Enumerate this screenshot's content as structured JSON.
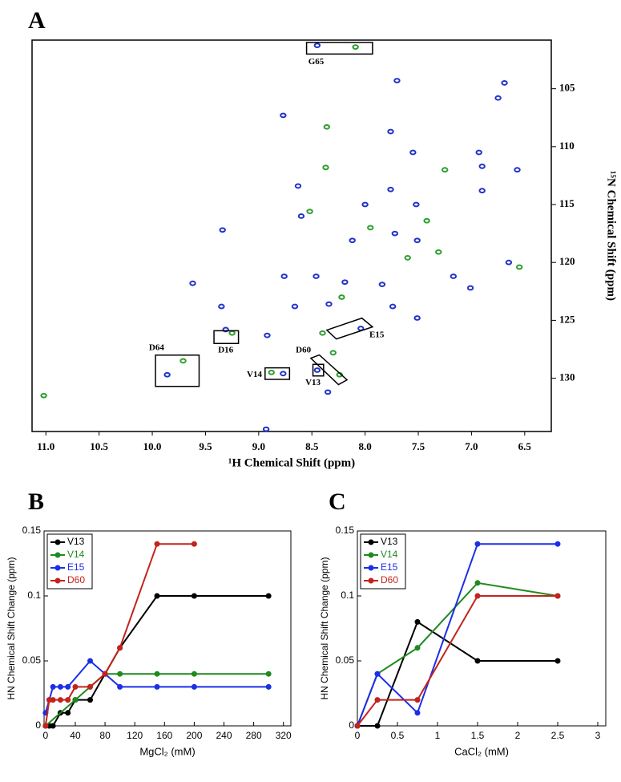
{
  "chart_data": [
    {
      "type": "scatter",
      "panel": "A",
      "xlabel": "¹H Chemical Shift (ppm)",
      "ylabel": "¹⁵N Chemical Shift (ppm)",
      "xlim": [
        11.13,
        6.25
      ],
      "ylim": [
        134.6,
        100.8
      ],
      "xticks": [
        {
          "value": 11.0,
          "label": "11.0"
        },
        10.5,
        {
          "value": 10.0,
          "label": "10.0"
        },
        9.5,
        {
          "value": 9.0,
          "label": "9.0"
        },
        8.5,
        {
          "value": 8.0,
          "label": "8.0"
        },
        7.5,
        {
          "value": 7.0,
          "label": "7.0"
        },
        6.5
      ],
      "yticks": [
        105,
        110,
        115,
        120,
        125,
        130
      ],
      "series": [
        {
          "color": "#2233c8",
          "x": [
            8.45,
            7.7,
            6.69,
            6.75,
            8.77,
            7.76,
            6.93,
            7.55,
            6.9,
            6.57,
            8.63,
            7.76,
            8.0,
            6.9,
            7.52,
            8.6,
            9.34,
            7.72,
            8.12,
            7.51,
            6.65,
            8.76,
            8.46,
            8.19,
            9.62,
            7.84,
            7.17,
            7.01,
            8.66,
            9.35,
            8.34,
            7.74,
            7.51,
            8.04,
            9.31,
            8.92,
            9.86,
            8.77,
            8.45,
            8.35,
            8.93
          ],
          "values": [
            101.26,
            104.3,
            104.5,
            105.8,
            107.3,
            108.7,
            110.5,
            110.5,
            111.7,
            112.0,
            113.4,
            113.7,
            115.0,
            113.8,
            115.0,
            116.0,
            117.2,
            117.5,
            118.1,
            118.1,
            120.0,
            121.2,
            121.2,
            121.7,
            121.8,
            121.9,
            121.2,
            122.2,
            123.8,
            123.8,
            123.6,
            123.8,
            124.8,
            125.7,
            125.8,
            126.3,
            129.7,
            129.6,
            129.3,
            131.2,
            134.4
          ]
        },
        {
          "color": "#2f9e2f",
          "x": [
            8.09,
            8.36,
            8.37,
            7.25,
            7.31,
            6.55,
            8.4,
            9.25,
            9.71,
            8.88,
            8.24,
            8.3,
            11.02,
            8.52,
            7.95,
            7.6,
            8.22,
            7.42
          ],
          "values": [
            101.4,
            108.3,
            111.8,
            112.0,
            119.1,
            120.4,
            126.1,
            126.1,
            128.5,
            129.5,
            129.7,
            127.8,
            131.5,
            115.6,
            117.0,
            119.6,
            123.0,
            116.4
          ]
        }
      ],
      "boxes": [
        {
          "label": "G65",
          "x": [
            8.55,
            7.93,
            7.93,
            8.55
          ],
          "y": [
            101.0,
            101.0,
            102.0,
            102.0
          ],
          "label_at": [
            8.46,
            102.7
          ]
        },
        {
          "label": "D16",
          "x": [
            9.42,
            9.19,
            9.19,
            9.42
          ],
          "y": [
            125.9,
            125.9,
            127.0,
            127.0
          ],
          "label_at": [
            9.31,
            127.6
          ]
        },
        {
          "label": "D64",
          "x": [
            9.97,
            9.56,
            9.56,
            9.97
          ],
          "y": [
            128.0,
            128.0,
            130.7,
            130.7
          ],
          "label_at": [
            9.96,
            127.4
          ]
        },
        {
          "label": "V14",
          "x": [
            8.94,
            8.71,
            8.71,
            8.94
          ],
          "y": [
            129.1,
            129.1,
            130.1,
            130.1
          ],
          "label_at": [
            9.04,
            129.7
          ]
        },
        {
          "label": "V13",
          "x": [
            8.49,
            8.39,
            8.39,
            8.49
          ],
          "y": [
            128.8,
            128.8,
            129.8,
            129.8
          ],
          "label_at": [
            8.49,
            130.4
          ]
        },
        {
          "label": "E15",
          "x": [
            8.36,
            8.03,
            7.93,
            8.27
          ],
          "y": [
            125.84,
            124.81,
            125.57,
            126.61
          ],
          "label_at": [
            7.89,
            126.3
          ]
        },
        {
          "label": "D60",
          "x": [
            8.51,
            8.43,
            8.17,
            8.25
          ],
          "y": [
            128.27,
            127.99,
            130.14,
            130.55
          ],
          "label_at": [
            8.58,
            127.6
          ]
        }
      ]
    },
    {
      "type": "line",
      "panel": "B",
      "xlabel": "MgCl₂ (mM)",
      "ylabel": "HN Chemical Shift Change (ppm)",
      "xlim": [
        -2,
        330
      ],
      "ylim": [
        0,
        0.15
      ],
      "xticks": [
        0,
        40,
        80,
        120,
        160,
        200,
        240,
        280,
        320
      ],
      "yticks": [
        0,
        0.05,
        0.1,
        0.15
      ],
      "legend": "upper left",
      "series": [
        {
          "name": "V13",
          "color": "#000000",
          "x": [
            0,
            5,
            10,
            20,
            30,
            40,
            60,
            80,
            100,
            150,
            200,
            300
          ],
          "values": [
            0,
            0,
            0,
            0.01,
            0.01,
            0.02,
            0.02,
            0.04,
            0.06,
            0.1,
            0.1,
            0.1
          ]
        },
        {
          "name": "V14",
          "color": "#1f8a1f",
          "x": [
            0,
            40,
            60,
            80,
            100,
            150,
            200,
            300
          ],
          "values": [
            0,
            0.02,
            0.03,
            0.04,
            0.04,
            0.04,
            0.04,
            0.04
          ]
        },
        {
          "name": "E15",
          "color": "#1c2ee6",
          "x": [
            0,
            5,
            10,
            20,
            30,
            60,
            80,
            100,
            150,
            200,
            300
          ],
          "values": [
            0.01,
            0.02,
            0.03,
            0.03,
            0.03,
            0.05,
            0.04,
            0.03,
            0.03,
            0.03,
            0.03
          ]
        },
        {
          "name": "D60",
          "color": "#c4231c",
          "x": [
            0,
            5,
            10,
            20,
            30,
            40,
            60,
            80,
            100,
            150,
            200
          ],
          "values": [
            0,
            0.02,
            0.02,
            0.02,
            0.02,
            0.03,
            0.03,
            0.04,
            0.06,
            0.14,
            0.14
          ]
        }
      ]
    },
    {
      "type": "line",
      "panel": "C",
      "xlabel": "CaCl₂ (mM)",
      "ylabel": "HN Chemical Shift Change (ppm)",
      "xlim": [
        0,
        3.1
      ],
      "ylim": [
        0,
        0.15
      ],
      "xticks": [
        0,
        0.5,
        1,
        1.5,
        2,
        2.5,
        3
      ],
      "yticks": [
        0,
        0.05,
        0.1,
        0.15
      ],
      "legend": "upper left",
      "series": [
        {
          "name": "V13",
          "color": "#000000",
          "x": [
            0,
            0.25,
            0.75,
            1.5,
            2.5
          ],
          "values": [
            0,
            0,
            0.08,
            0.05,
            0.05
          ]
        },
        {
          "name": "V14",
          "color": "#1f8a1f",
          "x": [
            0,
            0.25,
            0.75,
            1.5,
            2.5
          ],
          "values": [
            0,
            0.04,
            0.06,
            0.11,
            0.1
          ]
        },
        {
          "name": "E15",
          "color": "#1c2ee6",
          "x": [
            0,
            0.25,
            0.75,
            1.5,
            2.5
          ],
          "values": [
            0,
            0.04,
            0.01,
            0.14,
            0.14
          ]
        },
        {
          "name": "D60",
          "color": "#c4231c",
          "x": [
            0,
            0.25,
            0.75,
            1.5,
            2.5
          ],
          "values": [
            0,
            0.02,
            0.02,
            0.1,
            0.1
          ]
        }
      ]
    }
  ]
}
